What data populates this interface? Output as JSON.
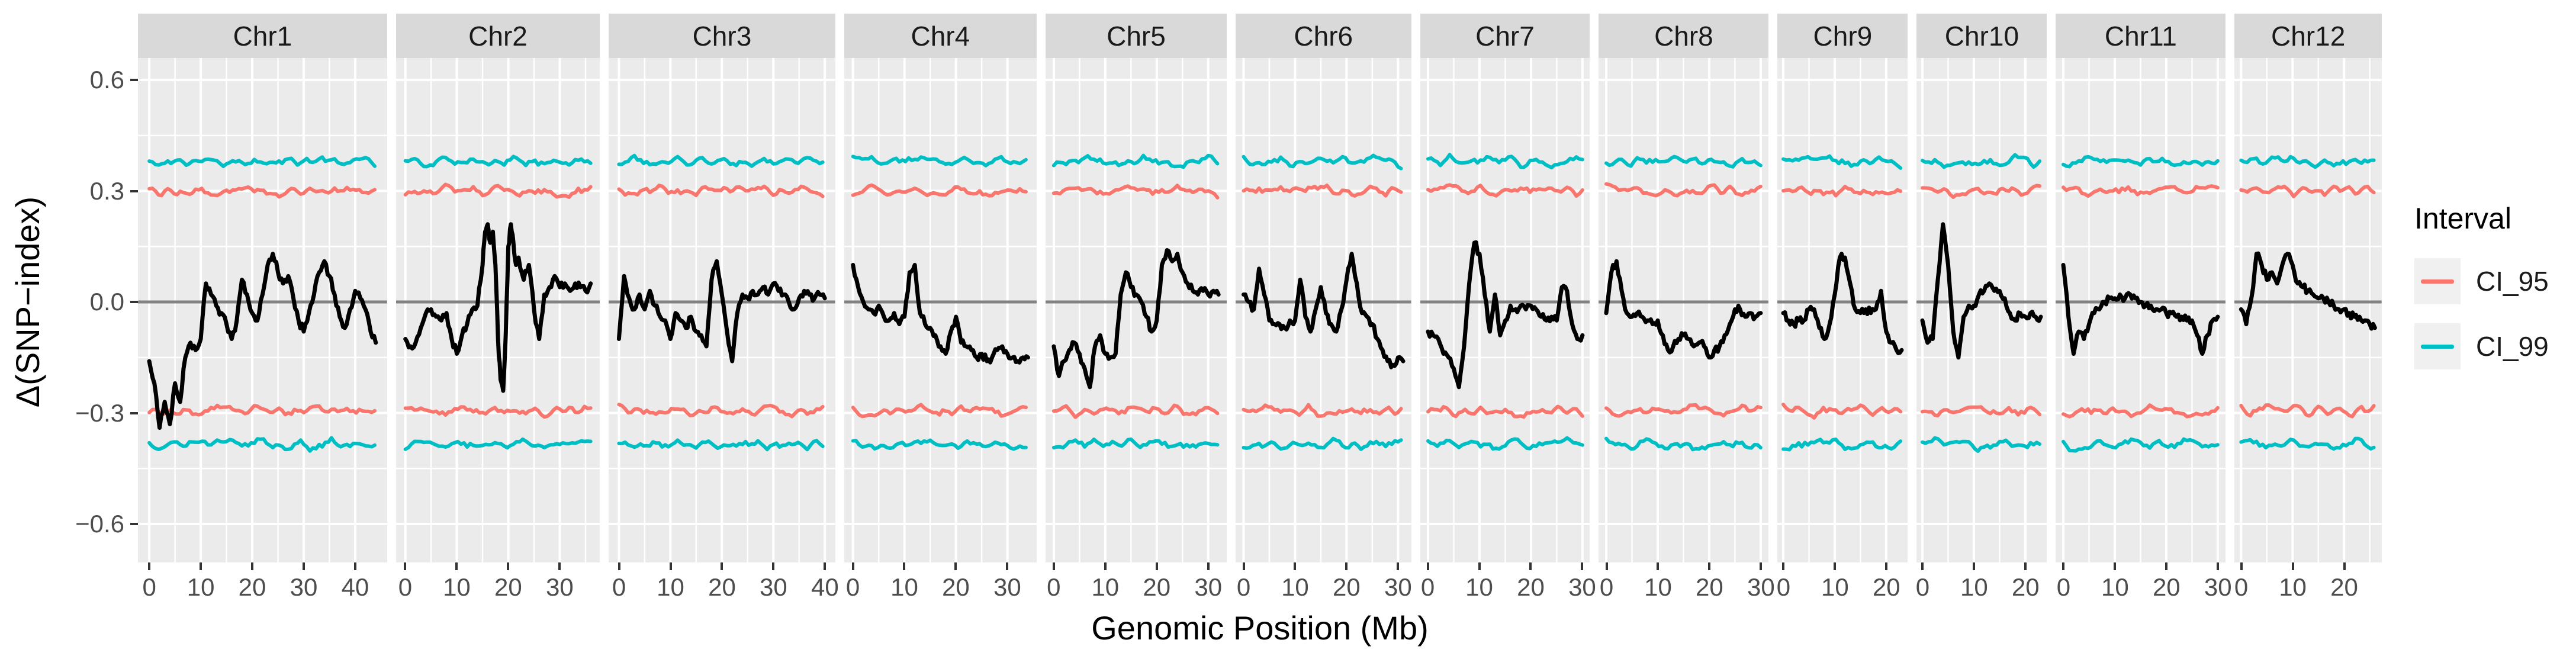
{
  "legend": {
    "title": "Interval",
    "items": [
      {
        "label": "CI_95",
        "color": "#F8766D"
      },
      {
        "label": "CI_99",
        "color": "#00BFC4"
      }
    ]
  },
  "style": {
    "panel_bg": "#EBEBEB",
    "header_bg": "#D9D9D9",
    "grid_color": "#FFFFFF",
    "zero_line_color": "#828282",
    "black_line_color": "#000000",
    "ci95_color": "#F8766D",
    "ci99_color": "#00BFC4",
    "axis_text_color": "#4D4D4D"
  },
  "chart_data": {
    "type": "line",
    "title": "",
    "xlabel": "Genomic Position (Mb)",
    "ylabel": "Δ(SNP−index)",
    "ylim": [
      -0.7,
      0.66
    ],
    "y_ticks": [
      0.6,
      0.3,
      0.0,
      -0.3,
      -0.6
    ],
    "y_tick_labels": [
      "0.6",
      "0.3",
      "0.0",
      "−0.3",
      "−0.6"
    ],
    "y_minor_ticks": [
      0.45,
      0.15,
      -0.15,
      -0.45
    ],
    "grid": true,
    "legend_position": "right",
    "confidence_intervals": {
      "ci95_upper": 0.3,
      "ci95_lower": -0.295,
      "ci99_upper": 0.38,
      "ci99_lower": -0.385,
      "wiggle_amplitude": 0.013,
      "wiggle_step_mb": 0.6
    },
    "facets": [
      {
        "label": "Chr1",
        "range_mb": 44,
        "x_ticks": [
          0,
          10,
          20,
          30,
          40
        ],
        "delta_x": [
          0,
          1,
          2,
          3,
          4,
          5,
          6,
          7,
          8,
          9,
          10,
          11,
          12,
          13,
          14,
          15,
          16,
          17,
          18,
          19,
          20,
          21,
          22,
          23,
          24,
          25,
          26,
          27,
          28,
          29,
          30,
          31,
          32,
          33,
          34,
          35,
          36,
          37,
          38,
          39,
          40,
          41,
          42,
          43,
          44
        ],
        "delta_y": [
          -0.16,
          -0.22,
          -0.34,
          -0.27,
          -0.33,
          -0.22,
          -0.27,
          -0.15,
          -0.11,
          -0.13,
          -0.1,
          0.05,
          0.02,
          -0.01,
          -0.03,
          -0.06,
          -0.1,
          -0.05,
          0.06,
          0.02,
          -0.03,
          -0.05,
          0.02,
          0.1,
          0.13,
          0.08,
          0.05,
          0.07,
          0.01,
          -0.05,
          -0.08,
          -0.03,
          0.02,
          0.08,
          0.11,
          0.07,
          0.02,
          -0.04,
          -0.07,
          -0.02,
          0.03,
          0.01,
          -0.02,
          -0.08,
          -0.11
        ]
      },
      {
        "label": "Chr2",
        "range_mb": 36,
        "x_ticks": [
          0,
          10,
          20,
          30
        ],
        "delta_x": [
          0,
          1,
          2,
          3,
          4,
          5,
          6,
          7,
          8,
          9,
          10,
          11,
          12,
          13,
          14,
          15,
          15.5,
          16,
          16.5,
          17,
          17.5,
          18,
          18.5,
          19,
          19.5,
          20,
          20.5,
          21,
          21.5,
          22,
          23,
          24,
          25,
          26,
          27,
          28,
          29,
          30,
          31,
          32,
          33,
          34,
          35,
          36
        ],
        "delta_y": [
          -0.1,
          -0.12,
          -0.11,
          -0.07,
          -0.03,
          -0.02,
          -0.04,
          -0.05,
          -0.03,
          -0.1,
          -0.14,
          -0.09,
          -0.06,
          -0.02,
          -0.01,
          0.1,
          0.19,
          0.21,
          0.16,
          0.19,
          0.1,
          -0.1,
          -0.21,
          -0.24,
          -0.09,
          0.15,
          0.21,
          0.16,
          0.1,
          0.12,
          0.06,
          0.1,
          -0.02,
          -0.1,
          0.02,
          0.04,
          0.07,
          0.04,
          0.05,
          0.03,
          0.05,
          0.04,
          0.03,
          0.05
        ]
      },
      {
        "label": "Chr3",
        "range_mb": 40,
        "x_ticks": [
          0,
          10,
          20,
          30,
          40
        ],
        "delta_x": [
          0,
          1,
          2,
          3,
          4,
          5,
          6,
          7,
          8,
          9,
          10,
          11,
          12,
          13,
          14,
          15,
          16,
          17,
          18,
          19,
          20,
          21,
          22,
          23,
          24,
          25,
          26,
          27,
          28,
          29,
          30,
          31,
          32,
          33,
          34,
          35,
          36,
          37,
          38,
          39,
          40
        ],
        "delta_y": [
          -0.1,
          0.07,
          0.01,
          -0.02,
          0.02,
          -0.02,
          0.03,
          -0.01,
          -0.04,
          -0.05,
          -0.1,
          -0.03,
          -0.05,
          -0.07,
          -0.04,
          -0.08,
          -0.09,
          -0.12,
          0.06,
          0.11,
          0.02,
          -0.08,
          -0.16,
          -0.03,
          0.02,
          0.01,
          0.03,
          0.02,
          0.04,
          0.02,
          0.05,
          0.03,
          0.02,
          0.0,
          -0.02,
          0.01,
          0.03,
          0.02,
          0.01,
          0.02,
          0.01
        ]
      },
      {
        "label": "Chr4",
        "range_mb": 34,
        "x_ticks": [
          0,
          10,
          20,
          30
        ],
        "delta_x": [
          0,
          1,
          2,
          3,
          4,
          5,
          6,
          7,
          8,
          9,
          10,
          11,
          12,
          13,
          14,
          15,
          16,
          17,
          18,
          19,
          20,
          21,
          22,
          23,
          24,
          25,
          26,
          27,
          28,
          29,
          30,
          31,
          32,
          33,
          34
        ],
        "delta_y": [
          0.1,
          0.04,
          0.0,
          -0.02,
          -0.03,
          -0.01,
          -0.04,
          -0.05,
          -0.03,
          -0.06,
          -0.04,
          0.08,
          0.1,
          -0.03,
          -0.06,
          -0.07,
          -0.09,
          -0.12,
          -0.14,
          -0.08,
          -0.04,
          -0.11,
          -0.12,
          -0.13,
          -0.15,
          -0.14,
          -0.16,
          -0.15,
          -0.13,
          -0.12,
          -0.14,
          -0.15,
          -0.16,
          -0.15,
          -0.15
        ]
      },
      {
        "label": "Chr5",
        "range_mb": 32,
        "x_ticks": [
          0,
          10,
          20,
          30
        ],
        "delta_x": [
          0,
          1,
          2,
          3,
          4,
          5,
          6,
          7,
          8,
          9,
          10,
          11,
          12,
          13,
          14,
          15,
          16,
          17,
          18,
          19,
          20,
          21,
          22,
          23,
          24,
          25,
          26,
          27,
          28,
          29,
          30,
          31,
          32
        ],
        "delta_y": [
          -0.12,
          -0.2,
          -0.16,
          -0.13,
          -0.11,
          -0.14,
          -0.18,
          -0.23,
          -0.12,
          -0.09,
          -0.14,
          -0.15,
          -0.14,
          0.02,
          0.08,
          0.04,
          0.02,
          0.0,
          -0.04,
          -0.08,
          -0.05,
          0.1,
          0.14,
          0.11,
          0.13,
          0.08,
          0.05,
          0.03,
          0.02,
          0.03,
          0.02,
          0.03,
          0.02
        ]
      },
      {
        "label": "Chr6",
        "range_mb": 31,
        "x_ticks": [
          0,
          10,
          20,
          30
        ],
        "delta_x": [
          0,
          1,
          2,
          3,
          4,
          5,
          6,
          7,
          8,
          9,
          10,
          11,
          12,
          13,
          14,
          15,
          16,
          17,
          18,
          19,
          20,
          21,
          22,
          23,
          24,
          25,
          26,
          27,
          28,
          29,
          30,
          31
        ],
        "delta_y": [
          0.02,
          0.0,
          -0.02,
          0.09,
          0.02,
          -0.05,
          -0.06,
          -0.06,
          -0.07,
          -0.05,
          -0.05,
          0.06,
          -0.04,
          -0.08,
          -0.02,
          0.04,
          -0.03,
          -0.06,
          -0.08,
          -0.02,
          0.06,
          0.13,
          0.05,
          -0.03,
          -0.04,
          -0.06,
          -0.1,
          -0.13,
          -0.16,
          -0.17,
          -0.15,
          -0.16
        ]
      },
      {
        "label": "Chr7",
        "range_mb": 30,
        "x_ticks": [
          0,
          10,
          20,
          30
        ],
        "delta_x": [
          0,
          1,
          2,
          3,
          4,
          5,
          6,
          7,
          8,
          9,
          10,
          11,
          12,
          13,
          14,
          15,
          16,
          17,
          18,
          19,
          20,
          21,
          22,
          23,
          24,
          25,
          26,
          27,
          28,
          29,
          30
        ],
        "delta_y": [
          -0.08,
          -0.09,
          -0.1,
          -0.14,
          -0.15,
          -0.18,
          -0.23,
          -0.12,
          0.05,
          0.16,
          0.13,
          0.02,
          -0.08,
          0.02,
          -0.09,
          -0.05,
          -0.01,
          -0.02,
          -0.01,
          -0.02,
          -0.01,
          -0.02,
          -0.04,
          -0.05,
          -0.04,
          -0.05,
          0.04,
          0.03,
          -0.06,
          -0.1,
          -0.09
        ]
      },
      {
        "label": "Chr8",
        "range_mb": 30,
        "x_ticks": [
          0,
          10,
          20,
          30
        ],
        "delta_x": [
          0,
          1,
          2,
          3,
          4,
          5,
          6,
          7,
          8,
          9,
          10,
          11,
          12,
          13,
          14,
          15,
          16,
          17,
          18,
          19,
          20,
          21,
          22,
          23,
          24,
          25,
          26,
          27,
          28,
          29,
          30
        ],
        "delta_y": [
          -0.03,
          0.08,
          0.11,
          0.03,
          -0.03,
          -0.04,
          -0.03,
          -0.04,
          -0.05,
          -0.06,
          -0.05,
          -0.09,
          -0.13,
          -0.12,
          -0.1,
          -0.09,
          -0.1,
          -0.12,
          -0.11,
          -0.12,
          -0.15,
          -0.13,
          -0.12,
          -0.09,
          -0.06,
          -0.02,
          -0.02,
          -0.04,
          -0.03,
          -0.04,
          -0.03
        ]
      },
      {
        "label": "Chr9",
        "range_mb": 23,
        "x_ticks": [
          0,
          10,
          20
        ],
        "delta_x": [
          0,
          1,
          2,
          3,
          4,
          5,
          6,
          7,
          8,
          9,
          10,
          11,
          12,
          13,
          14,
          15,
          16,
          17,
          18,
          19,
          20,
          21,
          22,
          23
        ],
        "delta_y": [
          -0.03,
          -0.05,
          -0.06,
          -0.05,
          -0.05,
          -0.02,
          -0.02,
          -0.07,
          -0.1,
          -0.06,
          0.02,
          0.12,
          0.12,
          0.05,
          -0.02,
          -0.03,
          -0.02,
          -0.03,
          -0.02,
          0.03,
          -0.08,
          -0.11,
          -0.13,
          -0.13
        ]
      },
      {
        "label": "Chr10",
        "range_mb": 23,
        "x_ticks": [
          0,
          10,
          20
        ],
        "delta_x": [
          0,
          1,
          2,
          3,
          4,
          5,
          6,
          7,
          8,
          9,
          10,
          11,
          12,
          13,
          14,
          15,
          16,
          17,
          18,
          19,
          20,
          21,
          22,
          23
        ],
        "delta_y": [
          -0.05,
          -0.11,
          -0.1,
          0.06,
          0.21,
          0.1,
          -0.08,
          -0.15,
          -0.04,
          -0.01,
          -0.01,
          0.02,
          0.03,
          0.05,
          0.03,
          0.03,
          0.01,
          -0.03,
          -0.05,
          -0.03,
          -0.04,
          -0.03,
          -0.04,
          -0.04
        ]
      },
      {
        "label": "Chr11",
        "range_mb": 30,
        "x_ticks": [
          0,
          10,
          20,
          30
        ],
        "delta_x": [
          0,
          1,
          2,
          3,
          4,
          5,
          6,
          7,
          8,
          9,
          10,
          11,
          12,
          13,
          14,
          15,
          16,
          17,
          18,
          19,
          20,
          21,
          22,
          23,
          24,
          25,
          26,
          27,
          28,
          29,
          30
        ],
        "delta_y": [
          0.1,
          -0.04,
          -0.14,
          -0.08,
          -0.1,
          -0.06,
          -0.03,
          -0.02,
          0.0,
          0.01,
          0.01,
          0.02,
          0.01,
          0.02,
          0.01,
          0.0,
          -0.01,
          -0.01,
          -0.02,
          -0.02,
          -0.03,
          -0.03,
          -0.04,
          -0.04,
          -0.05,
          -0.05,
          -0.09,
          -0.14,
          -0.09,
          -0.05,
          -0.04
        ]
      },
      {
        "label": "Chr12",
        "range_mb": 26,
        "x_ticks": [
          0,
          10,
          20
        ],
        "delta_x": [
          0,
          1,
          2,
          3,
          4,
          5,
          6,
          7,
          8,
          9,
          10,
          11,
          12,
          13,
          14,
          15,
          16,
          17,
          18,
          19,
          20,
          21,
          22,
          23,
          24,
          25,
          26
        ],
        "delta_y": [
          -0.02,
          -0.06,
          0.01,
          0.13,
          0.1,
          0.06,
          0.08,
          0.05,
          0.1,
          0.13,
          0.1,
          0.05,
          0.04,
          0.03,
          0.02,
          0.01,
          0.01,
          0.0,
          -0.01,
          -0.02,
          -0.02,
          -0.03,
          -0.04,
          -0.04,
          -0.05,
          -0.06,
          -0.07
        ]
      }
    ]
  }
}
